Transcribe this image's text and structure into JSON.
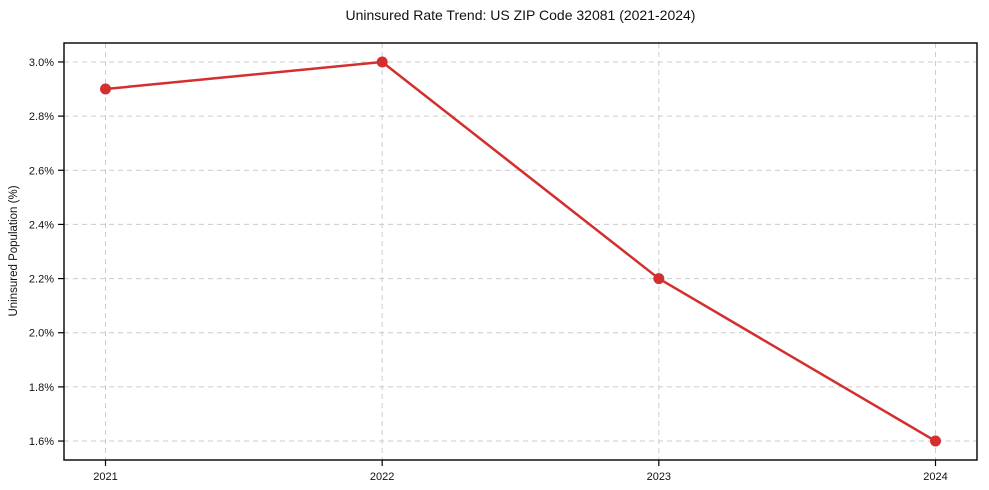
{
  "chart_data": {
    "type": "line",
    "title": "Uninsured Rate Trend: US ZIP Code 32081 (2021-2024)",
    "xlabel": "",
    "ylabel": "Uninsured Population (%)",
    "x": [
      2021,
      2022,
      2023,
      2024
    ],
    "series": [
      {
        "name": "Uninsured rate",
        "values": [
          2.9,
          3.0,
          2.2,
          1.6
        ]
      }
    ],
    "x_tick_labels": [
      "2021",
      "2022",
      "2023",
      "2024"
    ],
    "y_ticks": [
      1.6,
      1.8,
      2.0,
      2.2,
      2.4,
      2.6,
      2.8,
      3.0
    ],
    "y_tick_labels": [
      "1.6%",
      "1.8%",
      "2.0%",
      "2.2%",
      "2.4%",
      "2.6%",
      "2.8%",
      "3.0%"
    ],
    "xlim": [
      2020.85,
      2024.15
    ],
    "ylim": [
      1.53,
      3.07
    ],
    "grid": true,
    "grid_style": "dashed",
    "legend": false,
    "colors": {
      "line": "#d32f2f",
      "marker": "#d32f2f",
      "grid": "#cccccc",
      "spine": "#000000",
      "text": "#111111",
      "background": "#ffffff"
    }
  }
}
